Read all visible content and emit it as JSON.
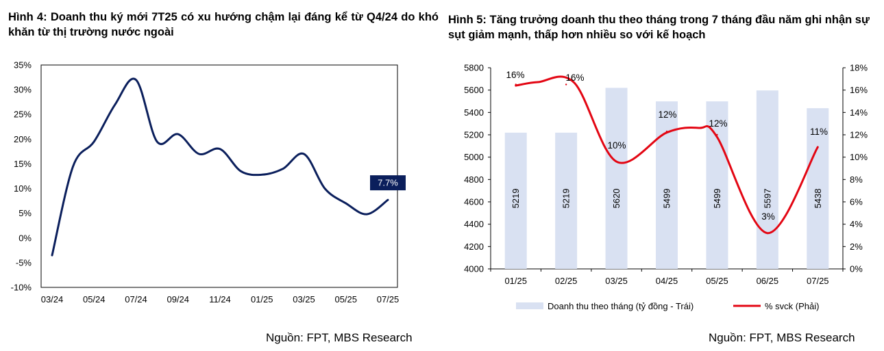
{
  "figure1": {
    "label": "Hình 4:",
    "title": "Doanh thu ký mới 7T25 có xu hướng chậm lại đáng kể từ Q4/24 do khó khăn từ thị trường nước ngoài",
    "source": "Nguồn: FPT, MBS Research"
  },
  "figure2": {
    "label": "Hình 5:",
    "title": "Tăng trưởng doanh thu theo tháng trong 7 tháng đầu năm ghi nhận sự sụt giảm mạnh, thấp hơn nhiều so với kế hoạch",
    "source": "Nguồn: FPT, MBS Research"
  },
  "colors": {
    "navy": "#0b1f5c",
    "bar": "#d9e1f2",
    "red": "#e30613"
  },
  "chart_data": [
    {
      "type": "line",
      "title": "",
      "x": [
        "03/24",
        "04/24",
        "05/24",
        "06/24",
        "07/24",
        "08/24",
        "09/24",
        "10/24",
        "11/24",
        "12/24",
        "01/25",
        "02/25",
        "03/25",
        "04/25",
        "05/25",
        "06/25",
        "07/25"
      ],
      "values": [
        -3.5,
        14.5,
        19.5,
        27.0,
        32.0,
        19.5,
        21.0,
        17.0,
        18.0,
        13.5,
        12.8,
        14.0,
        17.0,
        10.0,
        7.0,
        4.8,
        7.7
      ],
      "xticks": [
        "03/24",
        "05/24",
        "07/24",
        "09/24",
        "11/24",
        "01/25",
        "03/25",
        "05/25",
        "07/25"
      ],
      "yticks": [
        "-10%",
        "-5%",
        "0%",
        "5%",
        "10%",
        "15%",
        "20%",
        "25%",
        "30%",
        "35%"
      ],
      "ylim": [
        -10,
        35
      ],
      "end_label": "7.7%"
    },
    {
      "type": "bar+line",
      "categories": [
        "01/25",
        "02/25",
        "03/25",
        "04/25",
        "05/25",
        "06/25",
        "07/25"
      ],
      "series": [
        {
          "name": "Doanh thu theo tháng (tỷ đồng - Trái)",
          "axis": "left",
          "values": [
            5219,
            5219,
            5620,
            5499,
            5499,
            5597,
            5438
          ],
          "labels": [
            "5219",
            "5219",
            "5620",
            "5499",
            "5499",
            "5597",
            "5438"
          ]
        },
        {
          "name": "% svck (Phải)",
          "axis": "right",
          "values": [
            16.5,
            16.5,
            9.6,
            12.3,
            12.0,
            3.2,
            10.9
          ],
          "labels": [
            "16%",
            "16%",
            "10%",
            "12%",
            "12%",
            "3%",
            "11%"
          ]
        }
      ],
      "yticks_left": [
        "4000",
        "4200",
        "4400",
        "4600",
        "4800",
        "5000",
        "5200",
        "5400",
        "5600",
        "5800"
      ],
      "yticks_right": [
        "0%",
        "2%",
        "4%",
        "6%",
        "8%",
        "10%",
        "12%",
        "14%",
        "16%",
        "18%"
      ],
      "ylim_left": [
        4000,
        5800
      ],
      "ylim_right": [
        0,
        18
      ]
    }
  ]
}
